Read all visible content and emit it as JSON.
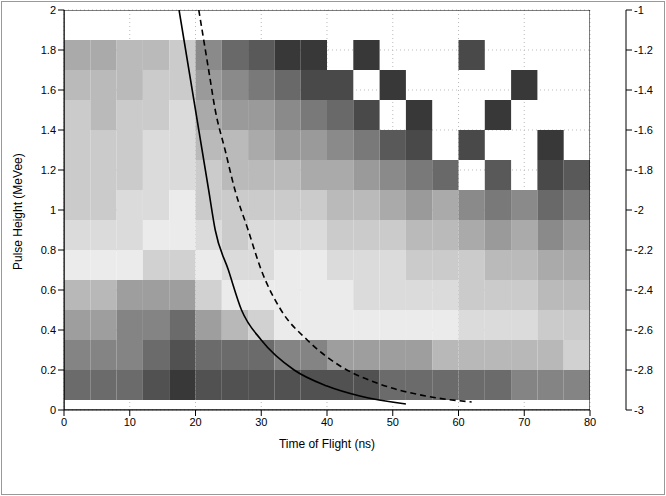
{
  "chart_data": {
    "type": "heatmap",
    "x_label": "Time of Flight (ns)",
    "y_label": "Pulse Height (MeVee)",
    "xlim": [
      0,
      80
    ],
    "ylim": [
      0,
      2
    ],
    "xticks": [
      0,
      10,
      20,
      30,
      40,
      50,
      60,
      70,
      80
    ],
    "yticks": [
      0,
      0.2,
      0.4,
      0.6,
      0.8,
      1,
      1.2,
      1.4,
      1.6,
      1.8,
      2
    ],
    "grid": true,
    "heatmap": {
      "x_edges": [
        0,
        4,
        8,
        12,
        16,
        20,
        24,
        28,
        32,
        36,
        40,
        44,
        48,
        52,
        56,
        60,
        64,
        68,
        72,
        76,
        80
      ],
      "y_edges": [
        0.05,
        0.2,
        0.35,
        0.5,
        0.65,
        0.8,
        0.95,
        1.1,
        1.25,
        1.4,
        1.55,
        1.7,
        1.85
      ],
      "cells": [
        [
          -1.3,
          -1.3,
          -1.3,
          -1.2,
          -1.1,
          -1.2,
          -1.2,
          -1.2,
          -1.2,
          -1.2,
          -1.2,
          -1.2,
          -1.3,
          -1.3,
          -1.3,
          -1.3,
          -1.3,
          -1.4,
          -1.4,
          -1.4
        ],
        [
          -1.4,
          -1.4,
          -1.4,
          -1.3,
          -1.2,
          -1.3,
          -1.3,
          -1.3,
          -1.4,
          -1.4,
          -1.5,
          -1.5,
          -1.5,
          -1.5,
          -1.6,
          -1.6,
          -1.6,
          -1.6,
          -1.6,
          -1.7
        ],
        [
          -1.5,
          -1.5,
          -1.4,
          -1.4,
          -1.3,
          -1.5,
          -1.6,
          -1.7,
          -1.8,
          -1.8,
          -1.8,
          -1.8,
          -1.8,
          -1.8,
          -1.8,
          -1.9,
          -1.9,
          -1.9,
          -2.0,
          -2.0
        ],
        [
          -1.6,
          -1.6,
          -1.5,
          -1.5,
          -1.5,
          -1.7,
          -1.8,
          -1.8,
          -1.8,
          -1.8,
          -1.8,
          -1.9,
          -1.9,
          -1.9,
          -1.9,
          -2.0,
          -2.0,
          -2.0,
          -2.1,
          -2.1
        ],
        [
          -1.8,
          -1.8,
          -1.8,
          -1.7,
          -1.7,
          -1.8,
          -1.9,
          -1.9,
          -1.8,
          -1.8,
          -1.9,
          -1.9,
          -1.9,
          -2.0,
          -2.0,
          -2.0,
          -2.1,
          -2.1,
          -2.2,
          -2.2
        ],
        [
          -1.9,
          -1.9,
          -1.9,
          -1.8,
          -1.8,
          -1.9,
          -2.0,
          -1.9,
          -1.9,
          -1.9,
          -2.0,
          -2.0,
          -2.0,
          -2.1,
          -2.1,
          -2.2,
          -2.3,
          -2.2,
          -2.4,
          -2.3
        ],
        [
          -2.0,
          -2.0,
          -1.9,
          -1.9,
          -1.8,
          -2.0,
          -2.0,
          -2.0,
          -2.0,
          -2.0,
          -2.1,
          -2.1,
          -2.2,
          -2.3,
          -2.2,
          -2.4,
          -2.5,
          -2.4,
          -2.6,
          -2.5
        ],
        [
          -2.0,
          -2.0,
          -2.0,
          -1.9,
          -1.9,
          -2.0,
          -2.1,
          -2.1,
          -2.1,
          -2.2,
          -2.2,
          -2.3,
          -2.4,
          -2.5,
          -2.6,
          null,
          -2.7,
          null,
          -2.8,
          -2.7
        ],
        [
          -2.0,
          -2.0,
          -2.0,
          -1.9,
          -1.9,
          -2.1,
          -2.1,
          -2.2,
          -2.3,
          -2.3,
          -2.4,
          -2.5,
          -2.7,
          -2.8,
          null,
          -2.8,
          null,
          null,
          -2.9,
          null
        ],
        [
          -2.0,
          -2.1,
          -2.0,
          -2.0,
          -1.9,
          -2.2,
          -2.3,
          -2.3,
          -2.4,
          -2.5,
          -2.6,
          -2.8,
          null,
          -2.9,
          null,
          null,
          -2.9,
          null,
          null,
          null
        ],
        [
          -2.1,
          -2.1,
          -2.1,
          -2.0,
          -2.0,
          -2.3,
          -2.4,
          -2.5,
          -2.6,
          -2.8,
          -2.8,
          null,
          -2.9,
          null,
          null,
          null,
          null,
          -2.9,
          null,
          null
        ],
        [
          -2.2,
          -2.2,
          -2.1,
          -2.1,
          -2.0,
          -2.4,
          -2.6,
          -2.7,
          -2.9,
          -2.9,
          null,
          -2.9,
          null,
          null,
          null,
          -2.8,
          null,
          null,
          null,
          null
        ]
      ]
    },
    "colorbar": {
      "range": [
        -3,
        -1
      ],
      "ticks": [
        -1,
        -1.2,
        -1.4,
        -1.6,
        -1.8,
        -2,
        -2.2,
        -2.4,
        -2.6,
        -2.8,
        -3
      ]
    },
    "series": [
      {
        "type": "line",
        "line_style": "solid",
        "color": "#000000",
        "x": [
          17.5,
          19,
          20,
          21,
          22,
          23,
          25,
          27,
          30,
          35,
          40,
          45,
          52
        ],
        "values": [
          2,
          1.7,
          1.5,
          1.3,
          1.1,
          0.9,
          0.7,
          0.5,
          0.35,
          0.2,
          0.12,
          0.07,
          0.03
        ]
      },
      {
        "type": "line",
        "line_style": "dashed",
        "color": "#000000",
        "x": [
          20.5,
          22,
          23,
          24.5,
          26,
          28,
          30,
          33,
          37,
          42,
          48,
          55,
          62
        ],
        "values": [
          2,
          1.7,
          1.5,
          1.3,
          1.1,
          0.9,
          0.7,
          0.5,
          0.35,
          0.22,
          0.13,
          0.07,
          0.04
        ]
      }
    ]
  }
}
